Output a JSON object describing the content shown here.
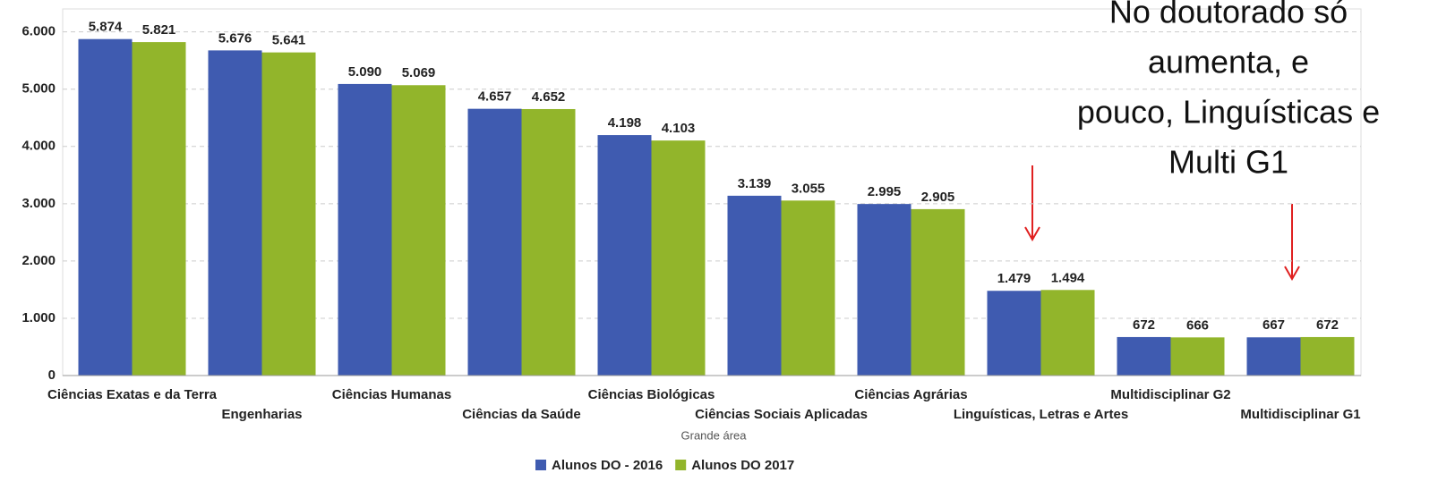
{
  "chart_data": {
    "type": "bar",
    "categories": [
      "Ciências Exatas e da Terra",
      "Engenharias",
      "Ciências Humanas",
      "Ciências da Saúde",
      "Ciências Biológicas",
      "Ciências Sociais Aplicadas",
      "Ciências Agrárias",
      "Linguísticas, Letras e Artes",
      "Multidisciplinar G2",
      "Multidisciplinar G1"
    ],
    "series": [
      {
        "name": "Alunos DO - 2016",
        "color": "#3f5bb0",
        "values": [
          5874,
          5676,
          5090,
          4657,
          4198,
          3139,
          2995,
          1479,
          672,
          667
        ],
        "value_labels": [
          "5.874",
          "5.676",
          "5.090",
          "4.657",
          "4.198",
          "3.139",
          "2.995",
          "1.479",
          "672",
          "667"
        ]
      },
      {
        "name": "Alunos DO 2017",
        "color": "#92b52b",
        "values": [
          5821,
          5641,
          5069,
          4652,
          4103,
          3055,
          2905,
          1494,
          666,
          672
        ],
        "value_labels": [
          "5.821",
          "5.641",
          "5.069",
          "4.652",
          "4.103",
          "3.055",
          "2.905",
          "1.494",
          "666",
          "672"
        ]
      }
    ],
    "x_label": "Grande área",
    "ylim": [
      0,
      6400
    ],
    "yticks": [
      0,
      {
        "value": 1000,
        "label": "1.000"
      },
      {
        "value": 2000,
        "label": "2.000"
      },
      {
        "value": 3000,
        "label": "3.000"
      },
      {
        "value": 4000,
        "label": "4.000"
      },
      {
        "value": 5000,
        "label": "5.000"
      },
      {
        "value": 6000,
        "label": "6.000"
      }
    ],
    "grid": true,
    "annotation": [
      "No doutorado só",
      "aumenta, e",
      "pouco, Linguísticas e",
      "Multi G1"
    ]
  }
}
